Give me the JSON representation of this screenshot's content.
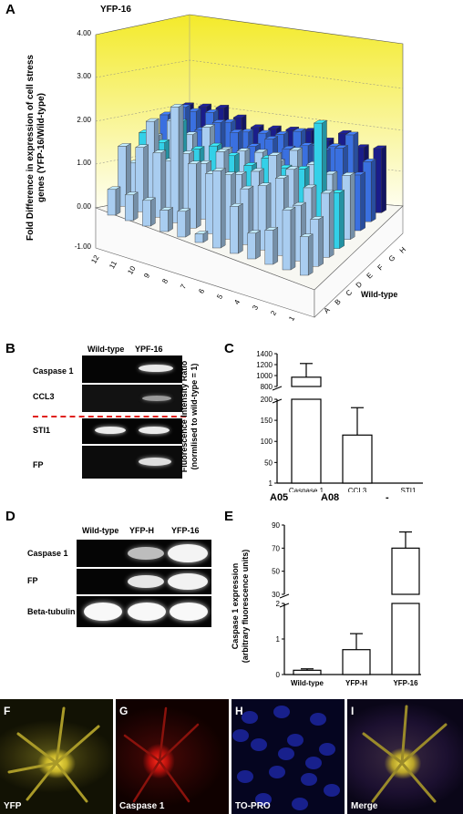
{
  "panel_a": {
    "letter": "A",
    "chart_title": "YFP-16",
    "ylabel_line1": "Fold Difference in expression of cell stress",
    "ylabel_line2": "genes (YFP-16/Wild-type)",
    "yticks": [
      "4.00",
      "3.00",
      "2.00",
      "1.00",
      "0.00",
      "-1.00"
    ],
    "row_labels": [
      "A",
      "B",
      "C",
      "D",
      "E",
      "F",
      "G",
      "H"
    ],
    "col_labels": [
      "12",
      "11",
      "10",
      "9",
      "8",
      "7",
      "6",
      "5",
      "4",
      "3",
      "2",
      "1"
    ],
    "depth_axis_label": "Wild-type"
  },
  "panel_b": {
    "letter": "B",
    "col_headers": [
      "Wild-type",
      "YPF-16"
    ],
    "row_labels": [
      "Caspase 1",
      "CCL3",
      "STI1",
      "FP"
    ]
  },
  "panel_c": {
    "letter": "C",
    "ylabel_line1": "Fluorescence Intensity Ratio",
    "ylabel_line2": "(normlised to wild-type = 1)",
    "upper_ticks": [
      "1400",
      "1200",
      "1000",
      "800"
    ],
    "lower_ticks": [
      "200",
      "150",
      "100",
      "50",
      "1"
    ],
    "sublabels": [
      "A05",
      "A08",
      "-"
    ]
  },
  "panel_d": {
    "letter": "D",
    "col_headers": [
      "Wild-type",
      "YFP-H",
      "YFP-16"
    ],
    "row_labels": [
      "Caspase 1",
      "FP",
      "Beta-tubulin"
    ]
  },
  "panel_e": {
    "letter": "E",
    "ylabel_line1": "Caspase 1 expression",
    "ylabel_line2": "(arbitrary fluorescence units)",
    "upper_ticks": [
      "90",
      "70",
      "50",
      "30"
    ],
    "lower_ticks": [
      "2",
      "1",
      "0"
    ]
  },
  "micrographs": [
    {
      "letter": "F",
      "caption": "YFP"
    },
    {
      "letter": "G",
      "caption": "Caspase 1"
    },
    {
      "letter": "H",
      "caption": "TO-PRO"
    },
    {
      "letter": "I",
      "caption": "Merge"
    }
  ],
  "colors": {
    "back_wall_top": "#f3ea2a",
    "back_wall_bottom": "#fefef0",
    "bar_light": "#a9cdf0",
    "bar_cyan": "#33d0e8",
    "bar_blue": "#3a70e0",
    "bar_navy": "#1a1d8a",
    "divider_red": "#e0201c"
  },
  "chart_data": [
    {
      "type": "bar",
      "title": "YFP-16",
      "xlabel": "",
      "ylabel": "Fold Difference in expression of cell stress genes (YFP-16/Wild-type)",
      "ylim": [
        -1,
        4
      ],
      "categories": [
        "12",
        "11",
        "10",
        "9",
        "8",
        "7",
        "6",
        "5",
        "4",
        "3",
        "2",
        "1"
      ],
      "series": [
        {
          "name": "A",
          "values": [
            0.6,
            0.6,
            0.6,
            0.5,
            0.6,
            0.2,
            1.8,
            1.1,
            0.6,
            0.8,
            1.4,
            0.9
          ]
        },
        {
          "name": "B",
          "values": [
            1.4,
            1.5,
            1.5,
            2.7,
            1.5,
            1.4,
            1.5,
            1.3,
            1.5,
            1.8,
            1.3,
            1.1
          ]
        },
        {
          "name": "C",
          "values": [
            0.8,
            1.9,
            1.1,
            1.4,
            1.3,
            1.7,
            1.3,
            1.5,
            2.0,
            1.8,
            1.5,
            1.5
          ]
        },
        {
          "name": "D",
          "values": [
            1.3,
            1.2,
            1.8,
            1.3,
            1.5,
            1.4,
            1.3,
            1.6,
            1.5,
            1.6,
            2.8,
            1.3
          ]
        },
        {
          "name": "E",
          "values": [
            1.0,
            1.5,
            1.3,
            1.6,
            1.2,
            1.3,
            1.4,
            1.3,
            1.7,
            1.5,
            1.4,
            1.5
          ]
        },
        {
          "name": "F",
          "values": [
            1.3,
            1.6,
            1.2,
            1.5,
            1.4,
            1.2,
            1.5,
            1.4,
            1.6,
            1.6,
            1.8,
            1.3
          ]
        },
        {
          "name": "G",
          "values": [
            1.2,
            1.3,
            1.4,
            1.3,
            1.2,
            1.3,
            1.4,
            1.6,
            1.4,
            1.5,
            1.9,
            1.4
          ]
        },
        {
          "name": "H",
          "values": [
            1.1,
            1.2,
            1.3,
            1.2,
            1.1,
            1.2,
            1.3,
            1.4,
            1.3,
            1.6,
            1.4,
            1.5
          ]
        }
      ]
    },
    {
      "type": "bar",
      "title": "",
      "xlabel": "",
      "ylabel": "Fluorescence Intensity Ratio (normlised to wild-type = 1)",
      "axis_break": [
        200,
        800
      ],
      "ylim": [
        1,
        1400
      ],
      "categories": [
        "Caspase 1",
        "CCL3",
        "STI1"
      ],
      "values": [
        970,
        115,
        1
      ],
      "errors": [
        250,
        65,
        0
      ]
    },
    {
      "type": "bar",
      "title": "",
      "xlabel": "",
      "ylabel": "Caspase 1 expression (arbitrary fluorescence units)",
      "axis_break": [
        2,
        30
      ],
      "ylim": [
        0,
        90
      ],
      "categories": [
        "Wild-type",
        "YFP-H",
        "YFP-16"
      ],
      "values": [
        0.12,
        0.7,
        70
      ],
      "errors": [
        0.04,
        0.45,
        14
      ]
    }
  ]
}
